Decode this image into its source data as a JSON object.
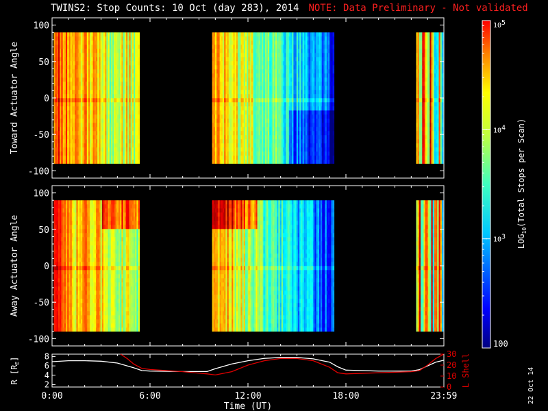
{
  "title": {
    "main": "TWINS2: Stop Counts: 10 Oct (day 283), 2014",
    "note": "NOTE: Data Preliminary - Not validated"
  },
  "footer_stamp": "22 Oct 14",
  "colors": {
    "background": "#000000",
    "axes": "#ffffff",
    "note_text": "#ff2020",
    "r_line": "#ffffff",
    "lshell_line": "#e00000"
  },
  "chart_data": [
    {
      "type": "heatmap",
      "ylabel": "Toward Actuator Angle",
      "ylim": [
        -110,
        110
      ],
      "yticks": [
        "100",
        "50",
        "0",
        "-50",
        "-100"
      ],
      "y_coverage": [
        -90,
        90
      ],
      "xlim_hours": [
        0,
        24
      ],
      "data_intervals_hours": [
        [
          0.1,
          5.3
        ],
        [
          9.8,
          17.2
        ],
        [
          22.3,
          23.9
        ]
      ],
      "notes": "orange/yellow in early part of each interval fading to blue near 15-17 h"
    },
    {
      "type": "heatmap",
      "ylabel": "Away Actuator Angle",
      "ylim": [
        -110,
        110
      ],
      "yticks": [
        "100",
        "50",
        "0",
        "-50",
        "-100"
      ],
      "y_coverage": [
        -90,
        90
      ],
      "xlim_hours": [
        0,
        24
      ],
      "data_intervals_hours": [
        [
          0.1,
          5.3
        ],
        [
          9.8,
          17.2
        ],
        [
          22.3,
          23.9
        ]
      ],
      "notes": "enhancement near +70 deg around 3-5 h and 10-12 h"
    },
    {
      "type": "line",
      "ylabel_left": "R [R",
      "ylabel_left_sub": "E",
      "ylabel_right": "L Shell",
      "xlabel": "Time (UT)",
      "xticks": [
        "0:00",
        "6:00",
        "12:00",
        "18:00",
        "23:59"
      ],
      "xlim_hours": [
        0,
        24
      ],
      "left_yticks": [
        "8",
        "6",
        "4",
        "2"
      ],
      "left_ylim": [
        1.5,
        8.5
      ],
      "right_yticks": [
        "30",
        "20",
        "10",
        "0"
      ],
      "right_ylim": [
        0,
        30
      ],
      "series": [
        {
          "axis": "left",
          "x": [
            0,
            1,
            2,
            3,
            4,
            5,
            5.5,
            6,
            8,
            9.5,
            10,
            11,
            12,
            13,
            14,
            15,
            16,
            17,
            17.5,
            18,
            20,
            22,
            22.5,
            23,
            23.5,
            23.99
          ],
          "y": [
            6.9,
            7.1,
            7.1,
            7.0,
            6.6,
            5.6,
            5.0,
            4.9,
            4.8,
            4.8,
            5.4,
            6.4,
            7.1,
            7.6,
            7.8,
            7.8,
            7.5,
            6.8,
            5.8,
            5.1,
            4.9,
            4.9,
            5.2,
            6.0,
            6.8,
            7.2
          ]
        },
        {
          "axis": "right",
          "x": [
            4.2,
            4.6,
            5.0,
            5.5,
            6.0,
            8.0,
            9.5,
            10.0,
            11.0,
            12.0,
            13.0,
            14.0,
            15.0,
            16.0,
            17.0,
            17.5,
            18.0,
            20.0,
            22.0,
            22.5,
            23.0,
            23.5,
            23.99
          ],
          "y": [
            30,
            26,
            21,
            17,
            16,
            14,
            12,
            11,
            14,
            20,
            24,
            26,
            26,
            24,
            18,
            13,
            12,
            13,
            14,
            15,
            20,
            26,
            30
          ]
        }
      ]
    },
    {
      "type": "colorbar",
      "label": "LOG",
      "label_sub": "10",
      "label_rest": "(Total Stops per Scan)",
      "scale": "log",
      "range": [
        100,
        100000
      ],
      "tick_labels": [
        "10",
        "10",
        "10",
        "100"
      ],
      "tick_superscripts": [
        "5",
        "4",
        "3",
        ""
      ],
      "tick_values": [
        100000,
        10000,
        1000,
        100
      ]
    }
  ]
}
